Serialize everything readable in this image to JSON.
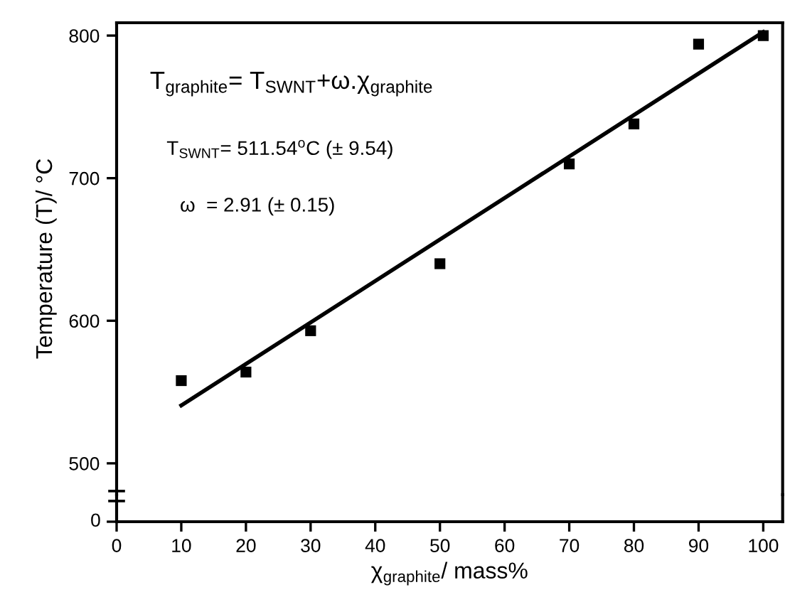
{
  "chart_data": {
    "type": "scatter",
    "xlabel": "χ$_{graphite}$/ mass%",
    "ylabel": "Temperature (T)/ °C",
    "xlim": [
      0,
      103
    ],
    "xticks": [
      0,
      10,
      20,
      30,
      40,
      50,
      60,
      70,
      80,
      90,
      100
    ],
    "ylim": [
      478,
      809
    ],
    "yticks": [
      500,
      600,
      700,
      800
    ],
    "grid": false,
    "legend": false,
    "annotations": [
      "T$_{graphite}$= T$_{SWNT}$+ω.χ$_{graphite}$",
      "T$_{SWNT}$= 511.54$^{o}$C (± 9.54)",
      "ω  = 2.91 (± 0.15)",
      "0"
    ],
    "series": [
      {
        "color": "#000000",
        "marker": "square",
        "x": [
          10,
          20,
          30,
          50,
          70,
          80,
          90,
          100
        ],
        "values": [
          558,
          564,
          593,
          640,
          710,
          738,
          794,
          800
        ]
      },
      {
        "type": "line",
        "color": "#000000",
        "line_style": "solid",
        "marker": "none",
        "x": [
          10,
          100
        ],
        "values": [
          540.6,
          802.5
        ]
      }
    ]
  }
}
